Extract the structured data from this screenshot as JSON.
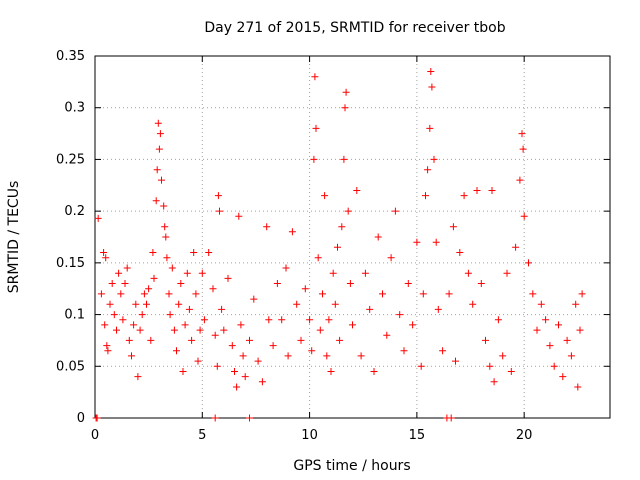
{
  "chart_data": {
    "type": "scatter",
    "title": "Day 271 of 2015, SRMTID for receiver tbob",
    "xlabel": "GPS time / hours",
    "ylabel": "SRMTID / TECUs",
    "xlim": [
      0,
      24
    ],
    "ylim": [
      0,
      0.35
    ],
    "xticks": [
      0,
      5,
      10,
      15,
      20
    ],
    "xtick_labels": [
      "0",
      "5",
      "10",
      "15",
      "20"
    ],
    "yticks": [
      0,
      0.05,
      0.1,
      0.15,
      0.2,
      0.25,
      0.3,
      0.35
    ],
    "ytick_labels": [
      "0",
      "0.05",
      "0.1",
      "0.15",
      "0.2",
      "0.25",
      "0.3",
      "0.35"
    ],
    "grid": true,
    "marker": "plus",
    "color": "#ff0000",
    "series": [
      {
        "name": "SRMTID",
        "points": [
          [
            0.1,
            0.0
          ],
          [
            0.15,
            0.193
          ],
          [
            0.3,
            0.12
          ],
          [
            0.4,
            0.16
          ],
          [
            0.5,
            0.155
          ],
          [
            0.45,
            0.09
          ],
          [
            0.55,
            0.07
          ],
          [
            0.6,
            0.065
          ],
          [
            0.7,
            0.11
          ],
          [
            0.8,
            0.13
          ],
          [
            0.9,
            0.1
          ],
          [
            1.0,
            0.085
          ],
          [
            1.1,
            0.14
          ],
          [
            1.2,
            0.12
          ],
          [
            1.3,
            0.095
          ],
          [
            1.4,
            0.13
          ],
          [
            1.5,
            0.145
          ],
          [
            1.6,
            0.075
          ],
          [
            1.7,
            0.06
          ],
          [
            1.8,
            0.09
          ],
          [
            1.9,
            0.11
          ],
          [
            2.0,
            0.04
          ],
          [
            2.1,
            0.085
          ],
          [
            2.2,
            0.1
          ],
          [
            2.3,
            0.12
          ],
          [
            2.4,
            0.11
          ],
          [
            2.5,
            0.125
          ],
          [
            2.6,
            0.075
          ],
          [
            2.7,
            0.16
          ],
          [
            2.75,
            0.135
          ],
          [
            2.85,
            0.21
          ],
          [
            2.9,
            0.24
          ],
          [
            2.95,
            0.285
          ],
          [
            3.0,
            0.26
          ],
          [
            3.05,
            0.275
          ],
          [
            3.1,
            0.23
          ],
          [
            3.2,
            0.205
          ],
          [
            3.25,
            0.185
          ],
          [
            3.3,
            0.175
          ],
          [
            3.35,
            0.155
          ],
          [
            3.45,
            0.12
          ],
          [
            3.5,
            0.1
          ],
          [
            3.6,
            0.145
          ],
          [
            3.7,
            0.085
          ],
          [
            3.8,
            0.065
          ],
          [
            3.9,
            0.11
          ],
          [
            4.0,
            0.13
          ],
          [
            4.1,
            0.045
          ],
          [
            4.2,
            0.09
          ],
          [
            4.3,
            0.14
          ],
          [
            4.4,
            0.105
          ],
          [
            4.5,
            0.075
          ],
          [
            4.6,
            0.16
          ],
          [
            4.7,
            0.12
          ],
          [
            4.8,
            0.055
          ],
          [
            4.9,
            0.085
          ],
          [
            5.0,
            0.14
          ],
          [
            5.1,
            0.095
          ],
          [
            5.3,
            0.16
          ],
          [
            5.5,
            0.125
          ],
          [
            5.6,
            0.08
          ],
          [
            5.7,
            0.05
          ],
          [
            5.75,
            0.215
          ],
          [
            5.8,
            0.2
          ],
          [
            5.9,
            0.105
          ],
          [
            6.0,
            0.085
          ],
          [
            6.2,
            0.135
          ],
          [
            6.4,
            0.07
          ],
          [
            6.5,
            0.045
          ],
          [
            6.6,
            0.03
          ],
          [
            6.7,
            0.195
          ],
          [
            6.8,
            0.09
          ],
          [
            6.9,
            0.06
          ],
          [
            7.0,
            0.04
          ],
          [
            7.2,
            0.075
          ],
          [
            7.4,
            0.115
          ],
          [
            7.6,
            0.055
          ],
          [
            7.8,
            0.035
          ],
          [
            8.0,
            0.185
          ],
          [
            8.1,
            0.095
          ],
          [
            8.3,
            0.07
          ],
          [
            8.5,
            0.13
          ],
          [
            8.7,
            0.095
          ],
          [
            8.9,
            0.145
          ],
          [
            9.0,
            0.06
          ],
          [
            9.2,
            0.18
          ],
          [
            9.4,
            0.11
          ],
          [
            9.6,
            0.075
          ],
          [
            9.8,
            0.125
          ],
          [
            10.0,
            0.095
          ],
          [
            10.1,
            0.065
          ],
          [
            10.2,
            0.25
          ],
          [
            10.25,
            0.33
          ],
          [
            10.3,
            0.28
          ],
          [
            10.4,
            0.155
          ],
          [
            10.5,
            0.085
          ],
          [
            10.6,
            0.12
          ],
          [
            10.7,
            0.215
          ],
          [
            10.8,
            0.06
          ],
          [
            10.9,
            0.095
          ],
          [
            11.0,
            0.045
          ],
          [
            11.1,
            0.14
          ],
          [
            11.2,
            0.11
          ],
          [
            11.3,
            0.165
          ],
          [
            11.4,
            0.075
          ],
          [
            11.5,
            0.185
          ],
          [
            11.6,
            0.25
          ],
          [
            11.65,
            0.3
          ],
          [
            11.7,
            0.315
          ],
          [
            11.8,
            0.2
          ],
          [
            11.9,
            0.13
          ],
          [
            12.0,
            0.09
          ],
          [
            12.2,
            0.22
          ],
          [
            12.4,
            0.06
          ],
          [
            12.6,
            0.14
          ],
          [
            12.8,
            0.105
          ],
          [
            13.0,
            0.045
          ],
          [
            13.2,
            0.175
          ],
          [
            13.4,
            0.12
          ],
          [
            13.6,
            0.08
          ],
          [
            13.8,
            0.155
          ],
          [
            14.0,
            0.2
          ],
          [
            14.2,
            0.1
          ],
          [
            14.4,
            0.065
          ],
          [
            14.6,
            0.13
          ],
          [
            14.8,
            0.09
          ],
          [
            15.0,
            0.17
          ],
          [
            15.2,
            0.05
          ],
          [
            15.3,
            0.12
          ],
          [
            15.4,
            0.215
          ],
          [
            15.5,
            0.24
          ],
          [
            15.6,
            0.28
          ],
          [
            15.65,
            0.335
          ],
          [
            15.7,
            0.32
          ],
          [
            15.8,
            0.25
          ],
          [
            15.9,
            0.17
          ],
          [
            16.0,
            0.105
          ],
          [
            16.2,
            0.065
          ],
          [
            16.4,
            0.0
          ],
          [
            16.5,
            0.12
          ],
          [
            16.6,
            0.0
          ],
          [
            16.7,
            0.185
          ],
          [
            16.8,
            0.055
          ],
          [
            17.0,
            0.16
          ],
          [
            17.2,
            0.215
          ],
          [
            17.4,
            0.14
          ],
          [
            17.6,
            0.11
          ],
          [
            17.8,
            0.22
          ],
          [
            18.0,
            0.13
          ],
          [
            18.2,
            0.075
          ],
          [
            18.4,
            0.05
          ],
          [
            18.5,
            0.22
          ],
          [
            18.6,
            0.035
          ],
          [
            18.8,
            0.095
          ],
          [
            19.0,
            0.06
          ],
          [
            19.2,
            0.14
          ],
          [
            19.4,
            0.045
          ],
          [
            19.6,
            0.165
          ],
          [
            19.8,
            0.23
          ],
          [
            19.9,
            0.275
          ],
          [
            19.95,
            0.26
          ],
          [
            20.0,
            0.195
          ],
          [
            20.2,
            0.15
          ],
          [
            20.4,
            0.12
          ],
          [
            20.6,
            0.085
          ],
          [
            20.8,
            0.11
          ],
          [
            21.0,
            0.095
          ],
          [
            21.2,
            0.07
          ],
          [
            21.4,
            0.05
          ],
          [
            21.6,
            0.09
          ],
          [
            21.8,
            0.04
          ],
          [
            22.0,
            0.075
          ],
          [
            22.2,
            0.06
          ],
          [
            22.4,
            0.11
          ],
          [
            22.5,
            0.03
          ],
          [
            22.6,
            0.085
          ],
          [
            22.7,
            0.12
          ],
          [
            0.05,
            0.0
          ],
          [
            7.2,
            0.0
          ],
          [
            5.6,
            0.0
          ]
        ]
      }
    ]
  }
}
